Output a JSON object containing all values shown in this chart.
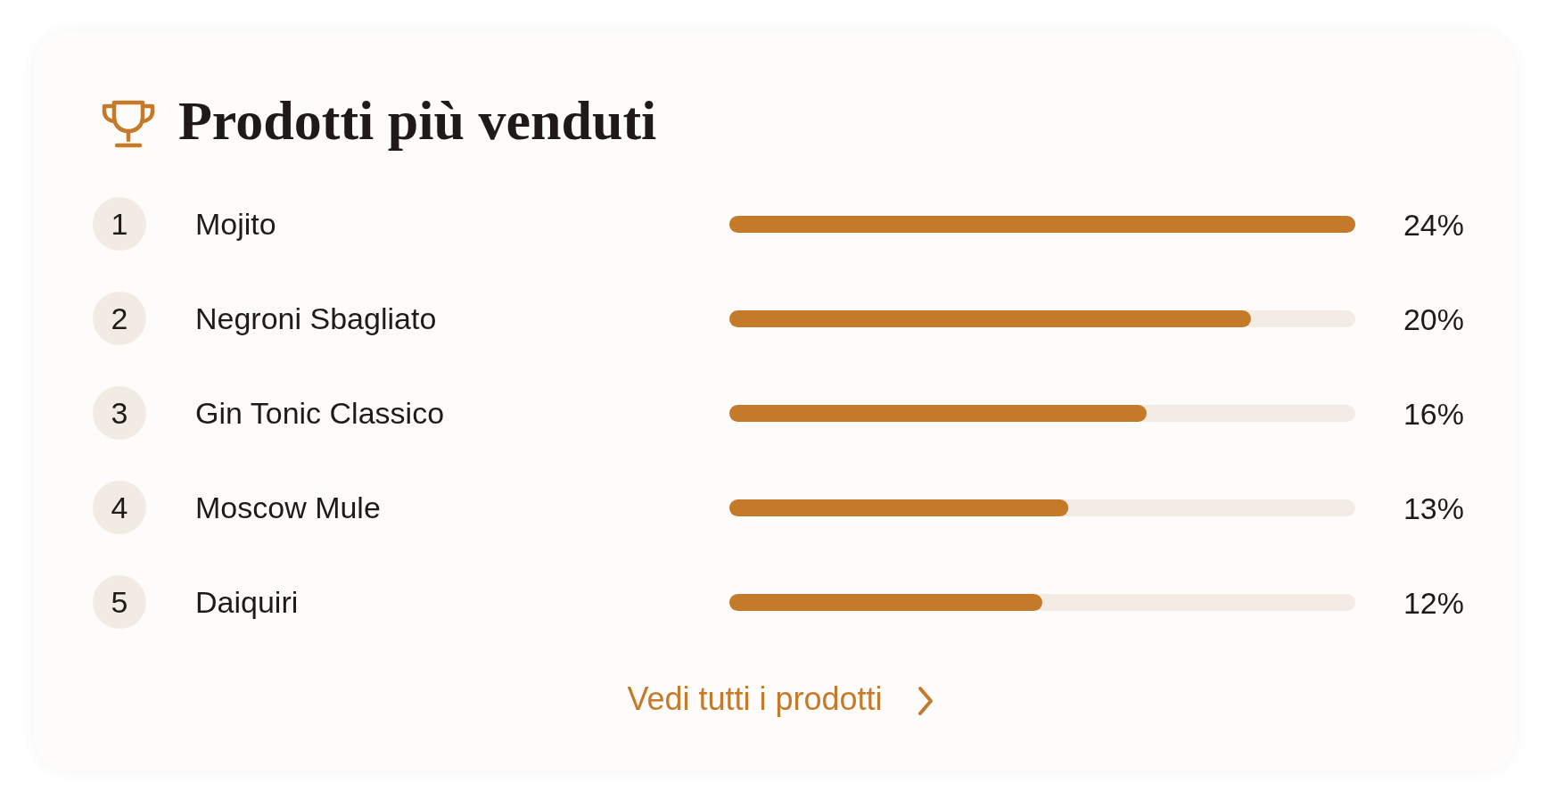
{
  "chart_data": {
    "type": "bar",
    "orientation": "horizontal",
    "title": "Prodotti più venduti",
    "categories": [
      "Mojito",
      "Negroni Sbagliato",
      "Gin Tonic Classico",
      "Moscow Mule",
      "Daiquiri"
    ],
    "values": [
      24,
      20,
      16,
      13,
      12
    ],
    "value_labels": [
      "24%",
      "20%",
      "16%",
      "13%",
      "12%"
    ],
    "color": "#c57a2a",
    "annotations": [
      "1",
      "2",
      "3",
      "4",
      "5",
      "Vedi tutti i prodotti"
    ],
    "legend": false,
    "grid": false
  }
}
